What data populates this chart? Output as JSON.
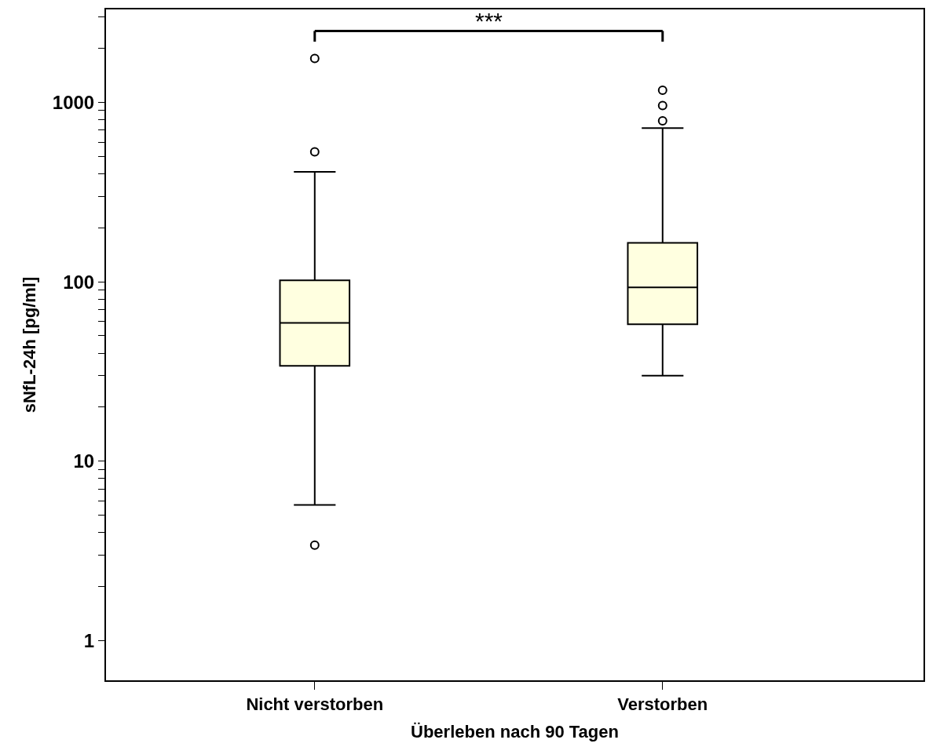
{
  "chart_data": {
    "type": "box",
    "xlabel": "Überleben nach 90 Tagen",
    "ylabel": "sNfL-24h [pg/ml]",
    "categories": [
      "Nicht verstorben",
      "Verstorben"
    ],
    "boxes": [
      {
        "low": 5.7,
        "q1": 34,
        "median": 59,
        "q3": 102,
        "high": 410,
        "outliers": [
          3.4,
          530,
          1760
        ]
      },
      {
        "low": 30,
        "q1": 58,
        "median": 93,
        "q3": 165,
        "high": 720,
        "outliers": [
          790,
          960,
          1170
        ]
      }
    ],
    "color": "#ffffe0",
    "log": true,
    "ylim": [
      0.6,
      3300
    ],
    "yticks": [
      1,
      {
        "value": 2,
        "label": null
      },
      {
        "value": 3,
        "label": null
      },
      {
        "value": 4,
        "label": null
      },
      {
        "value": 5,
        "label": null
      },
      {
        "value": 6,
        "label": null
      },
      {
        "value": 7,
        "label": null
      },
      {
        "value": 8,
        "label": null
      },
      {
        "value": 9,
        "label": null
      },
      10,
      {
        "value": 20,
        "label": null
      },
      {
        "value": 30,
        "label": null
      },
      {
        "value": 40,
        "label": null
      },
      {
        "value": 50,
        "label": null
      },
      {
        "value": 60,
        "label": null
      },
      {
        "value": 70,
        "label": null
      },
      {
        "value": 80,
        "label": null
      },
      {
        "value": 90,
        "label": null
      },
      100,
      {
        "value": 200,
        "label": null
      },
      {
        "value": 300,
        "label": null
      },
      {
        "value": 400,
        "label": null
      },
      {
        "value": 500,
        "label": null
      },
      {
        "value": 600,
        "label": null
      },
      {
        "value": 700,
        "label": null
      },
      {
        "value": 800,
        "label": null
      },
      {
        "value": 900,
        "label": null
      },
      1000,
      {
        "value": 2000,
        "label": null
      },
      {
        "value": 3000,
        "label": null
      }
    ],
    "annotations": [
      "***"
    ]
  }
}
